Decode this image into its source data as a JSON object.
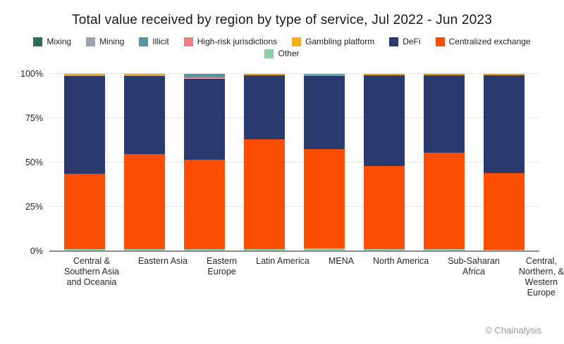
{
  "page": {
    "credit": "© Chainalysis"
  },
  "chart_data": {
    "type": "bar",
    "stacked": true,
    "title": "Total value received by region by type of service, Jul 2022 - Jun 2023",
    "xlabel": "",
    "ylabel": "",
    "ylim": [
      0,
      100
    ],
    "grid": true,
    "legend_position": "top",
    "y_ticks": [
      "0%",
      "25%",
      "50%",
      "75%",
      "100%"
    ],
    "categories": [
      {
        "name": "Central & Southern Asia and Oceania",
        "label_lines": [
          "Central &",
          "Southern Asia",
          "and Oceania"
        ]
      },
      {
        "name": "Eastern Asia",
        "label_lines": [
          "Eastern Asia"
        ]
      },
      {
        "name": "Eastern Europe",
        "label_lines": [
          "Eastern",
          "Europe"
        ]
      },
      {
        "name": "Latin America",
        "label_lines": [
          "Latin America"
        ]
      },
      {
        "name": "MENA",
        "label_lines": [
          "MENA"
        ]
      },
      {
        "name": "North America",
        "label_lines": [
          "North America"
        ]
      },
      {
        "name": "Sub-Saharan Africa",
        "label_lines": [
          "Sub-Saharan",
          "Africa"
        ]
      },
      {
        "name": "Central, Northern, & Western Europe",
        "label_lines": [
          "Central,",
          "Northern, &",
          "Western",
          "Europe"
        ]
      }
    ],
    "series_bottom_to_top": [
      {
        "name": "Other",
        "color": "#8bcda5",
        "values": [
          1.0,
          1.0,
          1.0,
          1.0,
          1.5,
          1.0,
          1.3,
          0.8
        ]
      },
      {
        "name": "Centralized exchange",
        "color": "#fc4e00",
        "values": [
          42.5,
          53.8,
          50.6,
          62.0,
          55.9,
          47.0,
          54.4,
          43.4
        ]
      },
      {
        "name": "DeFi",
        "color": "#2b3a6e",
        "values": [
          55.3,
          44.2,
          45.8,
          36.2,
          41.4,
          51.2,
          43.5,
          55.2
        ]
      },
      {
        "name": "Gambling platform",
        "color": "#fbad18",
        "values": [
          0.7,
          0.7,
          0.2,
          0.6,
          0.2,
          0.6,
          0.5,
          0.4
        ]
      },
      {
        "name": "High-risk jurisdictions",
        "color": "#ee7d87",
        "values": [
          0.1,
          0.1,
          0.3,
          0.1,
          0.4,
          0.1,
          0.1,
          0.1
        ]
      },
      {
        "name": "Illicit",
        "color": "#5297a4",
        "values": [
          0.2,
          0.2,
          2.1,
          0.1,
          0.4,
          0.1,
          0.2,
          0.1
        ]
      },
      {
        "name": "Mining",
        "color": "#9ba3b0",
        "values": [
          0.1,
          0.1,
          0.0,
          0.0,
          0.2,
          0.0,
          0.0,
          0.0
        ]
      },
      {
        "name": "Mixing",
        "color": "#2f6c5d",
        "values": [
          0.1,
          0.1,
          0.0,
          0.0,
          0.0,
          0.0,
          0.0,
          0.0
        ]
      }
    ],
    "legend_rows": [
      [
        "Mixing",
        "Mining",
        "Illicit",
        "High-risk jurisdictions",
        "Gambling platform",
        "DeFi",
        "Centralized exchange"
      ],
      [
        "Other"
      ]
    ]
  }
}
